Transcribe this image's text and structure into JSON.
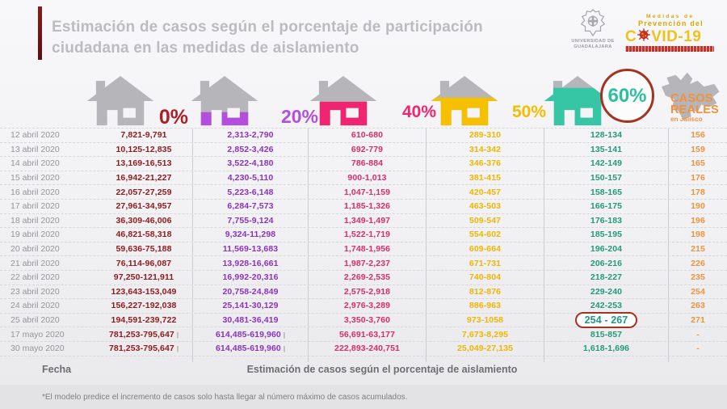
{
  "header": {
    "title_line1": "Estimación de casos según el porcentaje de participación",
    "title_line2": "ciudadana en las medidas de aislamiento",
    "udg_logo": {
      "caption_line1": "UNIVERSIDAD DE",
      "caption_line2": "GUADALAJARA"
    },
    "covid_logo": {
      "tagline_line1": "Medidas de",
      "tagline_line2": "Prevención del",
      "brand_prefix": "C",
      "brand_suffix": "VID-19"
    }
  },
  "columns": [
    {
      "id": "p0",
      "label": "0%",
      "fill_percent": 0,
      "house_color": "#b5b5ba",
      "label_color": "#ab1f26",
      "value_color": "#8f1a1e"
    },
    {
      "id": "p20",
      "label": "20%",
      "fill_percent": 20,
      "house_color": "#b44fdd",
      "label_color": "#b44fdd",
      "value_color": "#8a33c0"
    },
    {
      "id": "p40",
      "label": "40%",
      "fill_percent": 40,
      "house_color": "#f02572",
      "label_color": "#f02572",
      "value_color": "#d92c6b"
    },
    {
      "id": "p50",
      "label": "50%",
      "fill_percent": 50,
      "house_color": "#f4c000",
      "label_color": "#f2bd00",
      "value_color": "#eeb501"
    },
    {
      "id": "p60",
      "label": "60%",
      "fill_percent": 60,
      "house_color": "#36c6a5",
      "label_color": "#2fbf9d",
      "value_color": "#23997a",
      "circled": true,
      "circle_color": "#a33423"
    },
    {
      "id": "real",
      "label_line1": "CASOS",
      "label_line2": "REALES",
      "label_line3": "en Jalisco",
      "value_color": "#ef923d"
    }
  ],
  "chart_data": {
    "type": "table",
    "title": "Estimación de casos según el porcentaje de participación ciudadana en las medidas de aislamiento",
    "columns": [
      "Fecha",
      "0%",
      "20%",
      "40%",
      "50%",
      "60%",
      "Casos reales en Jalisco"
    ],
    "rows": [
      {
        "date": "12 abril 2020",
        "p0": "7,821-9,791",
        "p20": "2,313-2,790",
        "p40": "610-680",
        "p50": "289-310",
        "p60": "128-134",
        "real": "156"
      },
      {
        "date": "13 abril 2020",
        "p0": "10,125-12,835",
        "p20": "2,852-3,426",
        "p40": "692-779",
        "p50": "314-342",
        "p60": "135-141",
        "real": "159"
      },
      {
        "date": "14 abril 2020",
        "p0": "13,169-16,513",
        "p20": "3,522-4,180",
        "p40": "786-884",
        "p50": "346-376",
        "p60": "142-149",
        "real": "165"
      },
      {
        "date": "15 abril 2020",
        "p0": "16,942-21,227",
        "p20": "4,230-5,110",
        "p40": "900-1,013",
        "p50": "381-415",
        "p60": "150-157",
        "real": "176"
      },
      {
        "date": "16 abril 2020",
        "p0": "22,057-27,259",
        "p20": "5,223-6,148",
        "p40": "1,047-1,159",
        "p50": "420-457",
        "p60": "158-165",
        "real": "178"
      },
      {
        "date": "17 abril 2020",
        "p0": "27,961-34,957",
        "p20": "6,284-7,573",
        "p40": "1,185-1,326",
        "p50": "463-503",
        "p60": "166-175",
        "real": "190"
      },
      {
        "date": "18 abril 2020",
        "p0": "36,309-46,006",
        "p20": "7,755-9,124",
        "p40": "1,349-1,497",
        "p50": "509-547",
        "p60": "176-183",
        "real": "196"
      },
      {
        "date": "19 abril 2020",
        "p0": "46,821-58,318",
        "p20": "9,324-11,298",
        "p40": "1,522-1,719",
        "p50": "554-602",
        "p60": "185-195",
        "real": "198"
      },
      {
        "date": "20 abril 2020",
        "p0": "59,636-75,188",
        "p20": "11,569-13,683",
        "p40": "1,748-1,956",
        "p50": "609-664",
        "p60": "196-204",
        "real": "215"
      },
      {
        "date": "21 abril 2020",
        "p0": "76,114-96,087",
        "p20": "13,928-16,661",
        "p40": "1,987-2,237",
        "p50": "671-731",
        "p60": "206-216",
        "real": "226"
      },
      {
        "date": "22 abril 2020",
        "p0": "97,250-121,911",
        "p20": "16,992-20,316",
        "p40": "2,269-2,535",
        "p50": "740-804",
        "p60": "218-227",
        "real": "235"
      },
      {
        "date": "23 abril 2020",
        "p0": "123,643-153,049",
        "p20": "20,758-24,849",
        "p40": "2,575-2,918",
        "p50": "812-876",
        "p60": "229-240",
        "real": "254"
      },
      {
        "date": "24 abril 2020",
        "p0": "156,227-192,038",
        "p20": "25,141-30,129",
        "p40": "2,976-3,289",
        "p50": "886-963",
        "p60": "242-253",
        "real": "263"
      },
      {
        "date": "25 abril 2020",
        "p0": "194,591-239,722",
        "p20": "30,481-36,419",
        "p40": "3,350-3,760",
        "p50": "973-1058",
        "p60": "254 - 267",
        "real": "271",
        "highlight": "p60"
      },
      {
        "date": "17 mayo 2020",
        "p0": "781,253-795,647",
        "p20": "614,485-619,960",
        "p40": "56,691-63,177",
        "p50": "7,673-8,295",
        "p60": "815-857",
        "real": "-",
        "markers": [
          "p0",
          "p20"
        ]
      },
      {
        "date": "30 mayo 2020",
        "p0": "781,253-795,647",
        "p20": "614,485-619,960",
        "p40": "222,893-240,751",
        "p50": "25,049-27,135",
        "p60": "1,618-1,696",
        "real": "-",
        "markers": [
          "p0",
          "p20"
        ]
      }
    ],
    "highlighted_cell": {
      "date": "25 abril 2020",
      "column": "60%",
      "value": "254 - 267"
    }
  },
  "table_meta": {
    "marker_symbol": "|",
    "no_data_symbol": "-"
  },
  "footer": {
    "fecha_label": "Fecha",
    "axis_label": "Estimación de casos según el porcentaje de aislamiento",
    "footnote": "*El modelo predice el incremento de casos solo hasta llegar al número máximo de casos acumulados."
  }
}
